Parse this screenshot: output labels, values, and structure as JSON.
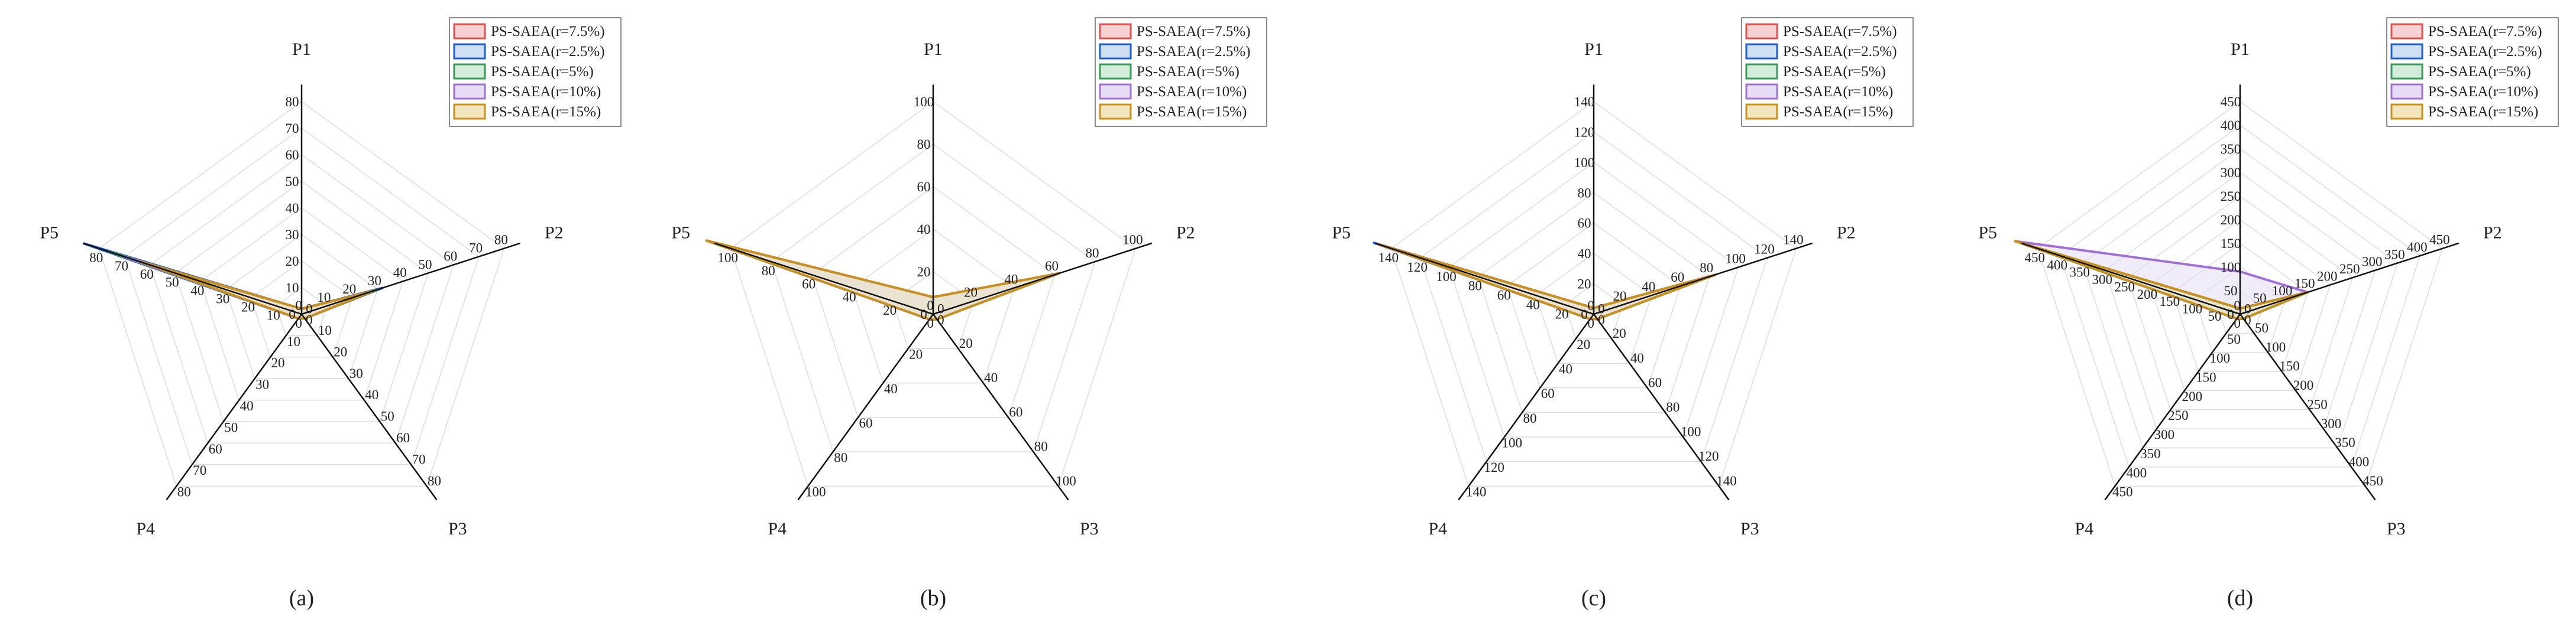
{
  "legend": [
    {
      "name": "PS-SAEA(r=7.5%)",
      "stroke": "#e05252",
      "fill": "#f7d2d2"
    },
    {
      "name": "PS-SAEA(r=2.5%)",
      "stroke": "#1f5fd6",
      "fill": "#cfe0f5"
    },
    {
      "name": "PS-SAEA(r=5%)",
      "stroke": "#3a9a5a",
      "fill": "#d4ecdc"
    },
    {
      "name": "PS-SAEA(r=10%)",
      "stroke": "#a070d6",
      "fill": "#e6dcf5"
    },
    {
      "name": "PS-SAEA(r=15%)",
      "stroke": "#c8901e",
      "fill": "#f2e4bc"
    }
  ],
  "axes": [
    "P1",
    "P2",
    "P3",
    "P4",
    "P5"
  ],
  "chart_data": [
    {
      "type": "radar",
      "panel_label": "(a)",
      "max": 80,
      "ticks": [
        0,
        10,
        20,
        30,
        40,
        50,
        60,
        70,
        80
      ],
      "series": [
        {
          "name": "PS-SAEA(r=7.5%)",
          "values": [
            2,
            30,
            2,
            2,
            76
          ]
        },
        {
          "name": "PS-SAEA(r=2.5%)",
          "values": [
            2,
            32,
            2,
            2,
            86
          ]
        },
        {
          "name": "PS-SAEA(r=5%)",
          "values": [
            2,
            30,
            2,
            2,
            76
          ]
        },
        {
          "name": "PS-SAEA(r=10%)",
          "values": [
            2,
            28,
            2,
            2,
            70
          ]
        },
        {
          "name": "PS-SAEA(r=15%)",
          "values": [
            2,
            28,
            2,
            2,
            64
          ]
        }
      ]
    },
    {
      "type": "radar",
      "panel_label": "(b)",
      "max": 100,
      "ticks": [
        0,
        20,
        40,
        60,
        80,
        100
      ],
      "series": [
        {
          "name": "PS-SAEA(r=7.5%)",
          "values": [
            8,
            62,
            3,
            3,
            112
          ]
        },
        {
          "name": "PS-SAEA(r=2.5%)",
          "values": [
            8,
            62,
            3,
            3,
            112
          ]
        },
        {
          "name": "PS-SAEA(r=5%)",
          "values": [
            8,
            62,
            3,
            3,
            112
          ]
        },
        {
          "name": "PS-SAEA(r=10%)",
          "values": [
            8,
            62,
            3,
            3,
            112
          ]
        },
        {
          "name": "PS-SAEA(r=15%)",
          "values": [
            8,
            62,
            3,
            3,
            112
          ]
        }
      ]
    },
    {
      "type": "radar",
      "panel_label": "(c)",
      "max": 140,
      "ticks": [
        0,
        20,
        40,
        60,
        80,
        100,
        120,
        140
      ],
      "series": [
        {
          "name": "PS-SAEA(r=7.5%)",
          "values": [
            4,
            84,
            4,
            4,
            150
          ]
        },
        {
          "name": "PS-SAEA(r=2.5%)",
          "values": [
            4,
            84,
            4,
            4,
            152
          ]
        },
        {
          "name": "PS-SAEA(r=5%)",
          "values": [
            4,
            84,
            4,
            4,
            150
          ]
        },
        {
          "name": "PS-SAEA(r=10%)",
          "values": [
            4,
            84,
            4,
            4,
            150
          ]
        },
        {
          "name": "PS-SAEA(r=15%)",
          "values": [
            4,
            84,
            4,
            4,
            148
          ]
        }
      ]
    },
    {
      "type": "radar",
      "panel_label": "(d)",
      "max": 450,
      "ticks": [
        0,
        50,
        100,
        150,
        200,
        250,
        300,
        350,
        400,
        450
      ],
      "series": [
        {
          "name": "PS-SAEA(r=7.5%)",
          "values": [
            12,
            150,
            12,
            12,
            500
          ]
        },
        {
          "name": "PS-SAEA(r=2.5%)",
          "values": [
            12,
            150,
            12,
            12,
            500
          ]
        },
        {
          "name": "PS-SAEA(r=5%)",
          "values": [
            12,
            150,
            12,
            12,
            500
          ]
        },
        {
          "name": "PS-SAEA(r=10%)",
          "values": [
            90,
            150,
            12,
            12,
            500
          ]
        },
        {
          "name": "PS-SAEA(r=15%)",
          "values": [
            12,
            150,
            12,
            12,
            500
          ]
        }
      ]
    }
  ]
}
